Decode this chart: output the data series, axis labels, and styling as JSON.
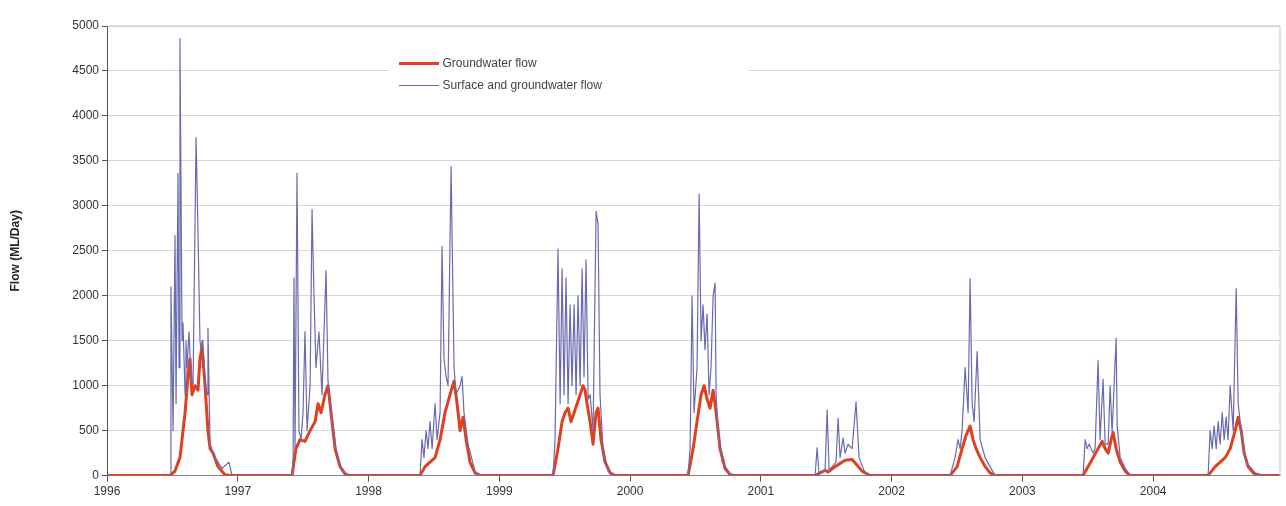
{
  "chart_data": {
    "type": "line",
    "ylabel": "Flow (ML/Day)",
    "xlim": [
      1996,
      2004.97
    ],
    "xticks": [
      1996,
      1997,
      1998,
      1999,
      2000,
      2001,
      2002,
      2003,
      2004
    ],
    "ylim": [
      0,
      5000
    ],
    "yticks": [
      0,
      500,
      1000,
      1500,
      2000,
      2500,
      3000,
      3500,
      4000,
      4500,
      5000
    ],
    "grid": "y",
    "legend": "top",
    "marker": "none",
    "line_style": "solid",
    "series": [
      {
        "name": "Groundwater flow",
        "color": "#e0401f",
        "x": [
          1996,
          1996.482,
          1996.52,
          1996.558,
          1996.597,
          1996.619,
          1996.635,
          1996.65,
          1996.673,
          1996.696,
          1996.711,
          1996.727,
          1996.75,
          1996.772,
          1996.788,
          1996.811,
          1996.849,
          1996.902,
          1996.941,
          1997.415,
          1997.445,
          1997.476,
          1997.514,
          1997.553,
          1997.591,
          1997.614,
          1997.637,
          1997.667,
          1997.69,
          1997.713,
          1997.744,
          1997.782,
          1997.82,
          1997.858,
          1998.394,
          1998.432,
          1998.47,
          1998.509,
          1998.547,
          1998.585,
          1998.623,
          1998.654,
          1998.677,
          1998.7,
          1998.723,
          1998.746,
          1998.776,
          1998.814,
          1998.853,
          1999.411,
          1999.449,
          1999.48,
          1999.503,
          1999.526,
          1999.549,
          1999.572,
          1999.595,
          1999.618,
          1999.64,
          1999.656,
          1999.671,
          1999.694,
          1999.717,
          1999.74,
          1999.755,
          1999.778,
          1999.809,
          1999.847,
          1999.885,
          2000.443,
          2000.482,
          2000.512,
          2000.543,
          2000.566,
          2000.589,
          2000.612,
          2000.635,
          2000.658,
          2000.688,
          2000.726,
          2000.765,
          2000.803,
          2001.415,
          2001.453,
          2001.491,
          2001.514,
          2001.568,
          2001.644,
          2001.698,
          2001.728,
          2001.774,
          2001.835,
          2001.874,
          2002.447,
          2002.501,
          2002.539,
          2002.57,
          2002.6,
          2002.623,
          2002.646,
          2002.677,
          2002.715,
          2002.753,
          2002.791,
          2003.464,
          2003.503,
          2003.541,
          2003.579,
          2003.61,
          2003.633,
          2003.656,
          2003.679,
          2003.694,
          2003.717,
          2003.748,
          2003.786,
          2003.824,
          2004.42,
          2004.474,
          2004.512,
          2004.551,
          2004.589,
          2004.627,
          2004.65,
          2004.673,
          2004.696,
          2004.726,
          2004.765,
          2004.803,
          2004.856,
          2004.97
        ],
        "values": [
          0,
          0,
          50,
          200,
          700,
          1100,
          1300,
          900,
          1000,
          950,
          1300,
          1430,
          1000,
          500,
          300,
          250,
          100,
          10,
          0,
          0,
          300,
          400,
          380,
          500,
          600,
          800,
          700,
          900,
          1000,
          700,
          300,
          100,
          20,
          0,
          0,
          100,
          150,
          200,
          400,
          700,
          900,
          1050,
          800,
          500,
          650,
          400,
          150,
          30,
          0,
          0,
          300,
          600,
          700,
          750,
          600,
          700,
          800,
          900,
          1000,
          950,
          800,
          600,
          350,
          700,
          750,
          400,
          150,
          30,
          0,
          0,
          300,
          600,
          900,
          1000,
          850,
          750,
          950,
          700,
          300,
          80,
          10,
          0,
          0,
          30,
          60,
          40,
          100,
          170,
          180,
          130,
          50,
          0,
          0,
          0,
          100,
          300,
          450,
          550,
          400,
          300,
          200,
          100,
          30,
          0,
          0,
          100,
          200,
          300,
          380,
          300,
          250,
          400,
          480,
          300,
          150,
          50,
          0,
          0,
          100,
          150,
          200,
          300,
          500,
          650,
          500,
          250,
          100,
          30,
          0,
          0,
          0
        ]
      },
      {
        "name": "Surface and groundwater flow",
        "color": "#6a6ab0",
        "x": [
          1996.482,
          1996.489,
          1996.505,
          1996.52,
          1996.528,
          1996.543,
          1996.551,
          1996.558,
          1996.574,
          1996.581,
          1996.597,
          1996.604,
          1996.612,
          1996.627,
          1996.642,
          1996.658,
          1996.681,
          1996.696,
          1996.711,
          1996.719,
          1996.727,
          1996.734,
          1996.75,
          1996.765,
          1996.772,
          1996.788,
          1996.826,
          1996.88,
          1996.933,
          1996.956,
          1997.415,
          1997.423,
          1997.43,
          1997.438,
          1997.453,
          1997.468,
          1997.484,
          1997.499,
          1997.514,
          1997.53,
          1997.553,
          1997.568,
          1997.583,
          1997.598,
          1997.621,
          1997.644,
          1997.675,
          1997.69,
          1997.713,
          1997.751,
          1997.782,
          1997.82,
          1997.858,
          1998.394,
          1998.409,
          1998.424,
          1998.44,
          1998.455,
          1998.47,
          1998.486,
          1998.509,
          1998.524,
          1998.547,
          1998.562,
          1998.577,
          1998.593,
          1998.608,
          1998.631,
          1998.654,
          1998.669,
          1998.7,
          1998.715,
          1998.73,
          1998.761,
          1998.814,
          1998.853,
          1999.411,
          1999.426,
          1999.449,
          1999.465,
          1999.48,
          1999.495,
          1999.51,
          1999.526,
          1999.541,
          1999.556,
          1999.572,
          1999.587,
          1999.602,
          1999.618,
          1999.633,
          1999.648,
          1999.663,
          1999.679,
          1999.694,
          1999.717,
          1999.74,
          1999.755,
          1999.77,
          1999.793,
          1999.832,
          1999.885,
          2000.443,
          2000.459,
          2000.474,
          2000.489,
          2000.512,
          2000.528,
          2000.543,
          2000.558,
          2000.573,
          2000.589,
          2000.604,
          2000.619,
          2000.635,
          2000.65,
          2000.658,
          2000.673,
          2000.704,
          2000.765,
          2000.803,
          2001.415,
          2001.43,
          2001.445,
          2001.491,
          2001.507,
          2001.522,
          2001.575,
          2001.591,
          2001.606,
          2001.629,
          2001.644,
          2001.667,
          2001.698,
          2001.728,
          2001.751,
          2001.797,
          2001.835,
          2002.447,
          2002.485,
          2002.508,
          2002.524,
          2002.539,
          2002.562,
          2002.585,
          2002.6,
          2002.616,
          2002.631,
          2002.654,
          2002.677,
          2002.715,
          2002.753,
          2002.791,
          2003.464,
          2003.48,
          2003.495,
          2003.51,
          2003.541,
          2003.556,
          2003.579,
          2003.594,
          2003.617,
          2003.633,
          2003.656,
          2003.671,
          2003.686,
          2003.717,
          2003.725,
          2003.748,
          2003.786,
          2003.824,
          2004.42,
          2004.436,
          2004.451,
          2004.466,
          2004.482,
          2004.497,
          2004.512,
          2004.528,
          2004.543,
          2004.558,
          2004.573,
          2004.589,
          2004.612,
          2004.635,
          2004.65,
          2004.673,
          2004.711,
          2004.78,
          2004.856,
          2004.97
        ],
        "values": [
          0,
          2100,
          500,
          2670,
          800,
          3360,
          1200,
          4860,
          1500,
          1700,
          900,
          1500,
          1200,
          1600,
          1100,
          1000,
          3760,
          2700,
          1500,
          1400,
          1500,
          1450,
          1050,
          900,
          1640,
          350,
          200,
          80,
          150,
          0,
          0,
          200,
          2200,
          300,
          3360,
          500,
          400,
          700,
          1600,
          500,
          1000,
          2960,
          2000,
          1200,
          1600,
          900,
          2280,
          1050,
          750,
          300,
          110,
          20,
          0,
          0,
          400,
          200,
          500,
          300,
          600,
          300,
          800,
          400,
          700,
          2550,
          1300,
          1100,
          1000,
          3440,
          1200,
          900,
          1000,
          1100,
          700,
          350,
          50,
          0,
          0,
          400,
          2520,
          800,
          2300,
          900,
          2200,
          800,
          1900,
          1000,
          1900,
          900,
          2000,
          1000,
          2300,
          1100,
          2400,
          850,
          900,
          500,
          2940,
          2800,
          900,
          300,
          50,
          0,
          0,
          300,
          2000,
          700,
          1200,
          3130,
          1500,
          1900,
          1400,
          1800,
          900,
          1200,
          2000,
          2140,
          900,
          500,
          150,
          20,
          0,
          0,
          310,
          20,
          50,
          730,
          60,
          150,
          640,
          200,
          420,
          250,
          350,
          300,
          820,
          200,
          30,
          0,
          0,
          200,
          400,
          300,
          500,
          1200,
          700,
          2190,
          800,
          600,
          1380,
          400,
          200,
          100,
          0,
          0,
          400,
          300,
          350,
          250,
          300,
          1280,
          400,
          1070,
          350,
          350,
          1000,
          480,
          1530,
          550,
          200,
          80,
          0,
          0,
          500,
          300,
          550,
          300,
          600,
          350,
          700,
          400,
          650,
          400,
          1000,
          500,
          2080,
          800,
          500,
          150,
          30,
          0,
          0
        ]
      }
    ]
  }
}
